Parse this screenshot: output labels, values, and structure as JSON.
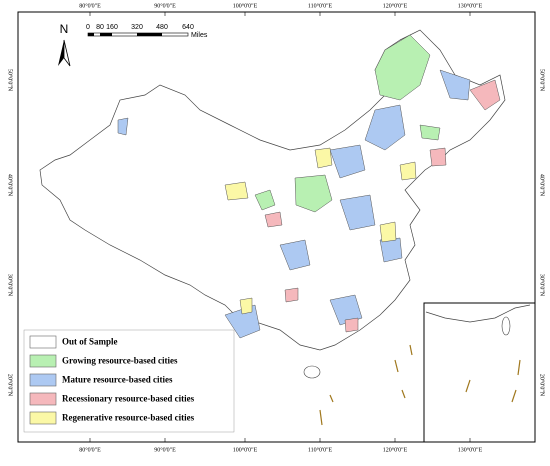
{
  "north": "N",
  "scale": {
    "ticks": [
      "0",
      "80",
      "160",
      "320",
      "480",
      "640"
    ],
    "unit": "Miles"
  },
  "top_labels": [
    "80°0'0\"E",
    "90°0'0\"E",
    "100°0'0\"E",
    "110°0'0\"E",
    "120°0'0\"E",
    "130°0'0\"E"
  ],
  "bottom_labels": [
    "80°0'0\"E",
    "90°0'0\"E",
    "100°0'0\"E",
    "110°0'0\"E",
    "120°0'0\"E",
    "130°0'0\"E"
  ],
  "left_labels": [
    "50°0'0\"N",
    "40°0'0\"N",
    "30°0'0\"N",
    "20°0'0\"N"
  ],
  "right_labels": [
    "50°0'0\"N",
    "40°0'0\"N",
    "30°0'0\"N",
    "20°0'0\"N"
  ],
  "legend": [
    {
      "label": "Out of Sample",
      "color": "#ffffff"
    },
    {
      "label": "Growing resource-based cities",
      "color": "#b8f0b2"
    },
    {
      "label": "Mature resource-based cities",
      "color": "#adc9f2"
    },
    {
      "label": "Recessionary resource-based cities",
      "color": "#f5b8bc"
    },
    {
      "label": "Regenerative resource-based cities",
      "color": "#fbf8a6"
    }
  ]
}
